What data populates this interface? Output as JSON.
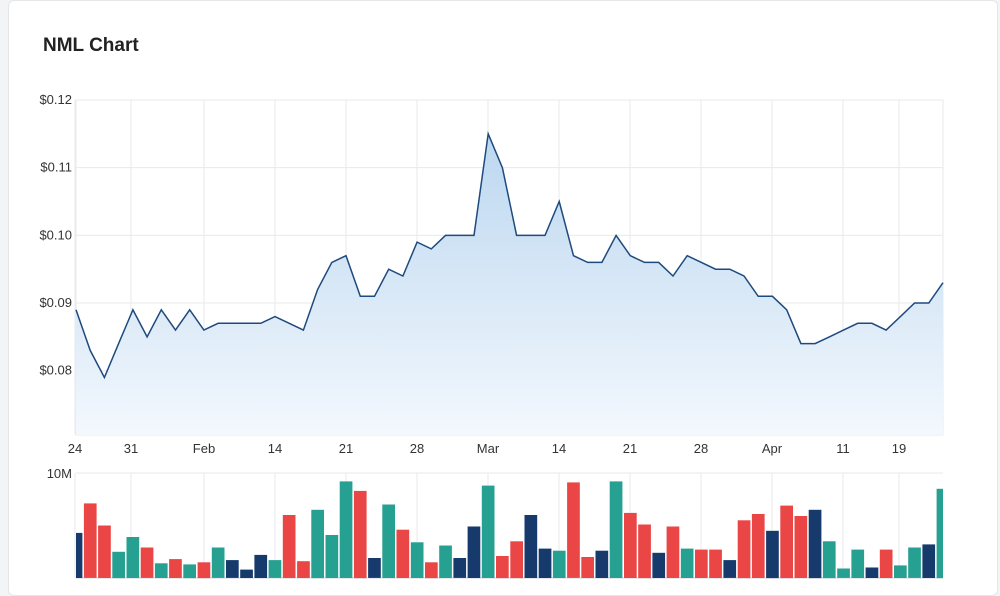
{
  "header": {
    "title": "NML Chart"
  },
  "chart_data": [
    {
      "type": "area",
      "title": "NML Chart",
      "x_tick_labels": [
        "24",
        "31",
        "Feb",
        "14",
        "21",
        "28",
        "Mar",
        "14",
        "21",
        "28",
        "Apr",
        "11",
        "19"
      ],
      "y_tick_labels": [
        "$0.12",
        "$0.11",
        "$0.10",
        "$0.09",
        "$0.08"
      ],
      "ylim": [
        0.0705,
        0.12
      ],
      "grid": true,
      "colors": {
        "line": "#1e4a7d",
        "fill_top": "#bcd7f0",
        "fill_bottom": "#f3f8fd",
        "grid": "#e8eaee"
      },
      "values": [
        0.089,
        0.083,
        0.079,
        0.084,
        0.089,
        0.085,
        0.089,
        0.086,
        0.089,
        0.086,
        0.087,
        0.087,
        0.087,
        0.087,
        0.088,
        0.087,
        0.086,
        0.092,
        0.096,
        0.097,
        0.091,
        0.091,
        0.095,
        0.094,
        0.099,
        0.098,
        0.1,
        0.1,
        0.1,
        0.115,
        0.11,
        0.1,
        0.1,
        0.1,
        0.105,
        0.097,
        0.096,
        0.096,
        0.1,
        0.097,
        0.096,
        0.096,
        0.094,
        0.097,
        0.096,
        0.095,
        0.095,
        0.094,
        0.091,
        0.091,
        0.089,
        0.084,
        0.084,
        0.085,
        0.086,
        0.087,
        0.087,
        0.086,
        0.088,
        0.09,
        0.09,
        0.093
      ]
    },
    {
      "type": "bar",
      "y_tick_labels": [
        "10M"
      ],
      "ylim": [
        0,
        10
      ],
      "colors": {
        "up": "#26a091",
        "down": "#ea4646",
        "flat": "#163a6b"
      },
      "values": [
        4.3,
        7.1,
        5.0,
        2.5,
        3.9,
        2.9,
        1.4,
        1.8,
        1.3,
        1.5,
        2.9,
        1.7,
        0.8,
        2.2,
        1.7,
        6.0,
        1.6,
        6.5,
        4.1,
        9.2,
        8.3,
        1.9,
        7.0,
        4.6,
        3.4,
        1.5,
        3.1,
        1.9,
        4.9,
        8.8,
        2.1,
        3.5,
        6.0,
        2.8,
        2.6,
        9.1,
        2.0,
        2.6,
        9.2,
        6.2,
        5.1,
        2.4,
        4.9,
        2.8,
        2.7,
        2.7,
        1.7,
        5.5,
        6.1,
        4.5,
        6.9,
        5.9,
        6.5,
        3.5,
        0.9,
        2.7,
        1.0,
        2.7,
        1.2,
        2.9,
        3.2,
        8.5
      ],
      "directions": [
        "flat",
        "down",
        "down",
        "up",
        "up",
        "down",
        "up",
        "down",
        "up",
        "down",
        "up",
        "flat",
        "flat",
        "flat",
        "up",
        "down",
        "down",
        "up",
        "up",
        "up",
        "down",
        "flat",
        "up",
        "down",
        "up",
        "down",
        "up",
        "flat",
        "flat",
        "up",
        "down",
        "down",
        "flat",
        "flat",
        "up",
        "down",
        "down",
        "flat",
        "up",
        "down",
        "down",
        "flat",
        "down",
        "up",
        "down",
        "down",
        "flat",
        "down",
        "down",
        "flat",
        "down",
        "down",
        "flat",
        "up",
        "up",
        "up",
        "flat",
        "down",
        "up",
        "up",
        "flat",
        "up"
      ]
    }
  ]
}
